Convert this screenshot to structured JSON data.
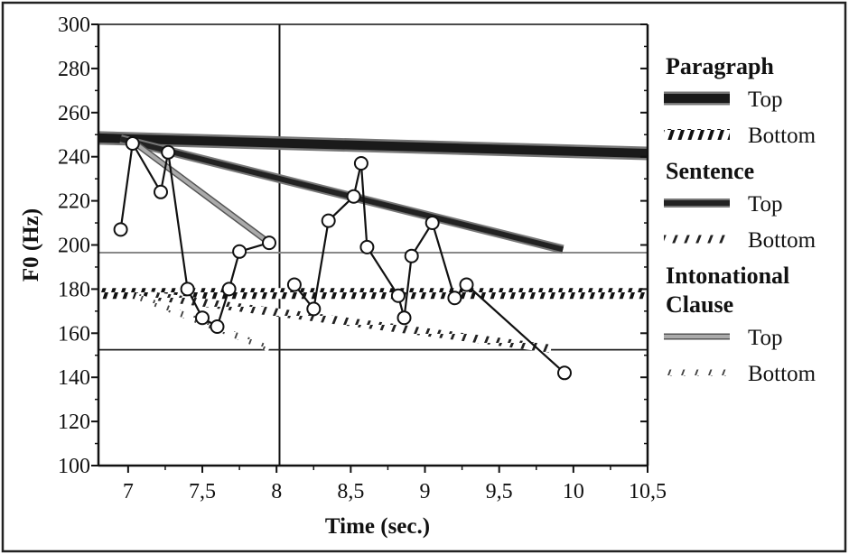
{
  "chart_data": {
    "type": "line",
    "xlabel": "Time (sec.)",
    "ylabel": "F0 (Hz)",
    "xlim": [
      6.8,
      10.5
    ],
    "ylim": [
      100,
      300
    ],
    "x_ticks": [
      7,
      7.5,
      8,
      8.5,
      9,
      9.5,
      10,
      10.5
    ],
    "x_tick_labels": [
      "7",
      "7,5",
      "8",
      "8,5",
      "9",
      "9,5",
      "10",
      "10,5"
    ],
    "y_ticks": [
      100,
      120,
      140,
      160,
      180,
      200,
      220,
      240,
      260,
      280,
      300
    ],
    "y_tick_labels": [
      "100",
      "120",
      "140",
      "160",
      "180",
      "200",
      "220",
      "240",
      "260",
      "280",
      "300"
    ],
    "grid": false,
    "legend_position": "right",
    "legend": [
      {
        "heading": "Paragraph",
        "items": [
          {
            "label": "Top",
            "style": "paragraph-top"
          },
          {
            "label": "Bottom",
            "style": "paragraph-bottom"
          }
        ]
      },
      {
        "heading": "Sentence",
        "items": [
          {
            "label": "Top",
            "style": "sentence-top"
          },
          {
            "label": "Bottom",
            "style": "sentence-bottom"
          }
        ]
      },
      {
        "heading": "Intonational\nClause",
        "items": [
          {
            "label": "Top",
            "style": "clause-top"
          },
          {
            "label": "Bottom",
            "style": "clause-bottom"
          }
        ]
      }
    ],
    "reference_lines": {
      "vertical_x": [
        8.02
      ],
      "horizontal_y": [
        196.5,
        152.5
      ]
    },
    "series": [
      {
        "name": "",
        "style": "f0",
        "segments": [
          [
            [
              6.95,
              207
            ],
            [
              7.03,
              246
            ],
            [
              7.22,
              224
            ],
            [
              7.27,
              242
            ],
            [
              7.4,
              180
            ],
            [
              7.5,
              167
            ],
            [
              7.6,
              163
            ],
            [
              7.68,
              180
            ],
            [
              7.75,
              197
            ],
            [
              7.95,
              201
            ]
          ],
          [
            [
              8.12,
              182
            ],
            [
              8.25,
              171
            ],
            [
              8.35,
              211
            ],
            [
              8.52,
              222
            ],
            [
              8.57,
              237
            ],
            [
              8.61,
              199
            ],
            [
              8.82,
              177
            ],
            [
              8.86,
              167
            ],
            [
              8.91,
              195
            ],
            [
              9.05,
              210
            ],
            [
              9.2,
              176
            ],
            [
              9.28,
              182
            ],
            [
              9.94,
              142
            ]
          ]
        ]
      },
      {
        "name": "Paragraph Top",
        "style": "paragraph-top",
        "segments": [
          [
            [
              6.8,
              248.5
            ],
            [
              10.5,
              241.5
            ]
          ]
        ]
      },
      {
        "name": "Paragraph Bottom",
        "style": "paragraph-bottom",
        "segments": [
          [
            [
              6.8,
              178
            ],
            [
              10.5,
              178
            ]
          ]
        ]
      },
      {
        "name": "Sentence Top",
        "style": "sentence-top",
        "segments": [
          [
            [
              6.95,
              248
            ],
            [
              9.93,
              198
            ]
          ]
        ]
      },
      {
        "name": "Sentence Bottom",
        "style": "sentence-bottom",
        "segments": [
          [
            [
              7.15,
              177
            ],
            [
              9.85,
              153
            ]
          ]
        ]
      },
      {
        "name": "Intonational Clause Top",
        "style": "clause-top",
        "segments": [
          [
            [
              7.05,
              246
            ],
            [
              7.95,
              201
            ]
          ]
        ]
      },
      {
        "name": "Intonational Clause Bottom",
        "style": "clause-bottom",
        "segments": [
          [
            [
              7.05,
              177
            ],
            [
              7.95,
              153
            ]
          ]
        ]
      }
    ]
  }
}
